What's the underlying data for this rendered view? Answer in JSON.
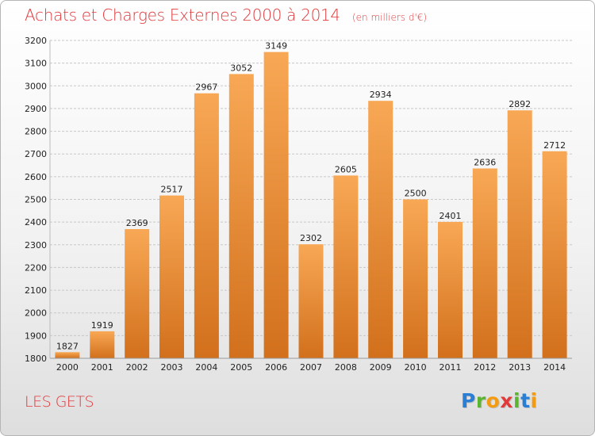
{
  "header": {
    "title": "Achats et Charges Externes 2000 à 2014",
    "unit": "(en milliers d'€)"
  },
  "footer": {
    "commune": "LES GETS",
    "logo_letters": [
      {
        "char": "P",
        "color": "#2a7fd4"
      },
      {
        "char": "r",
        "color": "#5bb530"
      },
      {
        "char": "o",
        "color": "#f39c12"
      },
      {
        "char": "x",
        "color": "#e23a3a"
      },
      {
        "char": "i",
        "color": "#5bb530"
      },
      {
        "char": "t",
        "color": "#2a7fd4"
      },
      {
        "char": "i",
        "color": "#f39c12"
      }
    ]
  },
  "colors": {
    "bar_top": "#f8a855",
    "bar_bottom": "#d2701c",
    "grid": "#c8c8c8",
    "title": "#e0383b"
  },
  "chart_data": {
    "type": "bar",
    "title": "Achats et Charges Externes 2000 à 2014",
    "subtitle": "(en milliers d'€)",
    "xlabel": "",
    "ylabel": "",
    "ylim": [
      1800,
      3200
    ],
    "ytick_step": 100,
    "grid": true,
    "categories": [
      "2000",
      "2001",
      "2002",
      "2003",
      "2004",
      "2005",
      "2006",
      "2007",
      "2008",
      "2009",
      "2010",
      "2011",
      "2012",
      "2013",
      "2014"
    ],
    "values": [
      1827,
      1919,
      2369,
      2517,
      2967,
      3052,
      3149,
      2302,
      2605,
      2934,
      2500,
      2401,
      2636,
      2892,
      2712
    ]
  }
}
